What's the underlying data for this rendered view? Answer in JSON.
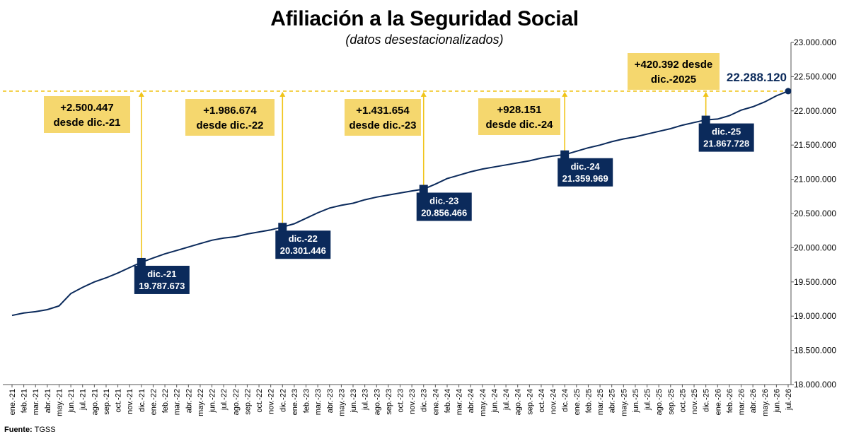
{
  "chart_data": {
    "type": "line",
    "title": "Afiliación a la Seguridad Social",
    "subtitle": "(datos desestacionalizados)",
    "source_label": "Fuente:",
    "source_value": "TGSS",
    "ylim": [
      18000000,
      23000000
    ],
    "yticks": [
      "18.000.000",
      "18.500.000",
      "19.000.000",
      "19.500.000",
      "20.000.000",
      "20.500.000",
      "21.000.000",
      "21.500.000",
      "22.000.000",
      "22.500.000",
      "23.000.000"
    ],
    "ytick_values": [
      18000000,
      18500000,
      19000000,
      19500000,
      20000000,
      20500000,
      21000000,
      21500000,
      22000000,
      22500000,
      23000000
    ],
    "categories": [
      "ene.-21",
      "feb.-21",
      "mar.-21",
      "abr.-21",
      "may.-21",
      "jun.-21",
      "jul.-21",
      "ago.-21",
      "sep.-21",
      "oct.-21",
      "nov.-21",
      "dic.-21",
      "ene.-22",
      "feb.-22",
      "mar.-22",
      "abr.-22",
      "may.-22",
      "jun.-22",
      "jul.-22",
      "ago.-22",
      "sep.-22",
      "oct.-22",
      "nov.-22",
      "dic.-22",
      "ene.-23",
      "feb.-23",
      "mar.-23",
      "abr.-23",
      "may.-23",
      "jun.-23",
      "jul.-23",
      "ago.-23",
      "sep.-23",
      "oct.-23",
      "nov.-23",
      "dic.-23",
      "ene.-24",
      "feb.-24",
      "mar.-24",
      "abr.-24",
      "may.-24",
      "jun.-24",
      "jul.-24",
      "ago.-24",
      "sep.-24",
      "oct.-24",
      "nov.-24",
      "dic.-24",
      "ene.-25",
      "feb.-25",
      "mar.-25",
      "abr.-25",
      "may.-25",
      "jun.-25",
      "jul.-25",
      "ago.-25",
      "sep.-25",
      "oct.-25",
      "nov.-25",
      "dic.-25",
      "ene.-26",
      "feb.-26",
      "mar.-26",
      "abr.-26",
      "may.-26",
      "jun.-26",
      "jul.-26"
    ],
    "series": [
      {
        "values": [
          19010000,
          19045000,
          19065000,
          19095000,
          19150000,
          19330000,
          19420000,
          19500000,
          19560000,
          19630000,
          19710000,
          19787673,
          19850000,
          19910000,
          19960000,
          20010000,
          20060000,
          20110000,
          20140000,
          20160000,
          20200000,
          20230000,
          20260000,
          20301446,
          20350000,
          20430000,
          20510000,
          20580000,
          20620000,
          20650000,
          20700000,
          20740000,
          20770000,
          20800000,
          20830000,
          20856466,
          20930000,
          21010000,
          21060000,
          21110000,
          21150000,
          21180000,
          21210000,
          21240000,
          21270000,
          21310000,
          21340000,
          21359969,
          21410000,
          21460000,
          21500000,
          21550000,
          21590000,
          21620000,
          21660000,
          21700000,
          21740000,
          21790000,
          21830000,
          21867728,
          21880000,
          21930000,
          22010000,
          22060000,
          22130000,
          22220000,
          22288120
        ]
      }
    ],
    "line_color": "#0b2a5b",
    "highlight_color": "#f5d76e",
    "ref_line_color": "#f0c419",
    "markers": [
      {
        "index": 11,
        "label": "dic.-21",
        "value_label": "19.787.673",
        "diff_line1": "+2.500.447",
        "diff_line2": "desde dic.-21"
      },
      {
        "index": 23,
        "label": "dic.-22",
        "value_label": "20.301.446",
        "diff_line1": "+1.986.674",
        "diff_line2": "desde dic.-22"
      },
      {
        "index": 35,
        "label": "dic.-23",
        "value_label": "20.856.466",
        "diff_line1": "+1.431.654",
        "diff_line2": "desde dic.-23"
      },
      {
        "index": 47,
        "label": "dic.-24",
        "value_label": "21.359.969",
        "diff_line1": "+928.151",
        "diff_line2": "desde dic.-24"
      },
      {
        "index": 59,
        "label": "dic.-25",
        "value_label": "21.867.728",
        "diff_line1": "+420.392 desde",
        "diff_line2": "dic.-2025"
      }
    ],
    "last_value_label": "22.288.120"
  }
}
